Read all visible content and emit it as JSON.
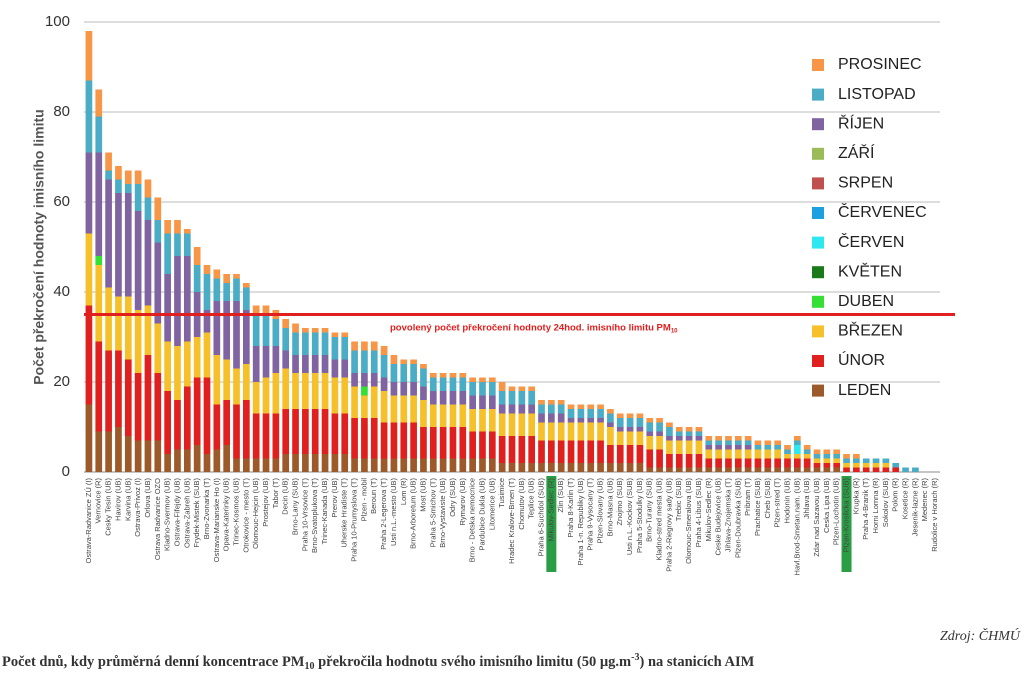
{
  "chart_data": {
    "type": "bar",
    "stacked": true,
    "y_label": "Počet překročení hodnoty imisního limitu",
    "caption": [
      "Počet dnů, kdy průměrná denní koncentrace PM",
      "10",
      " překročila hodnotu svého imisního limitu (50 µg.m",
      "-3",
      ") na stanicích AIM"
    ],
    "source": "Zdroj: ČHMÚ",
    "ylim": [
      0,
      100
    ],
    "yticks": [
      0,
      20,
      40,
      60,
      80,
      100
    ],
    "grid": true,
    "reference_line": {
      "value": 35,
      "color": "#e0201e",
      "label": [
        "povolený počet překročení hodnoty 24hod. imisního limitu PM",
        "10"
      ]
    },
    "highlighted": [
      47,
      77
    ],
    "highlight_color": "#2a9d45",
    "categories": [
      "Ostrava-Radvanice ZÚ (I)",
      "Vernovice (R)",
      "Cesky Tesin (UB)",
      "Havirov (UB)",
      "Karvina (UB)",
      "Ostrava-Privoz (I)",
      "Orlova (UB)",
      "Ostrava Radvanice OZO",
      "Kladno-Svermov (UB)",
      "Ostrava-Fifejdy (UB)",
      "Ostrava-Zabreh (UB)",
      "Frydek-Mistek (SUB)",
      "Brno-Zvonarka (T)",
      "Ostrava-Marianske Ho (I)",
      "Opava-Katerinky (UB)",
      "Trinec-Kosmos (UB)",
      "Otrokovice - mesto (T)",
      "Olomouc-Hejcin (UB)",
      "Prostejov (UB)",
      "Tabor (T)",
      "Decin (UB)",
      "Brno-Lany (SUB)",
      "Praha 10-Vrsovice (T)",
      "Brno-Svatoplukova (T)",
      "Trinec-Kanada (UB)",
      "Prerov (UB)",
      "Uherske Hradiste (T)",
      "Praha 10-Prumyslova (T)",
      "Plzen - mobil",
      "Beroun (T)",
      "Praha 2-Legerova (T)",
      "Usti n.L.-mesto (UB)",
      "Lom (R)",
      "Brno-Arboretum (UB)",
      "Most (UB)",
      "Praha 5-Smichov (T)",
      "Brno-Vystaviste (UB)",
      "Odry (SUB)",
      "Rymarov (UB)",
      "Brno - Detska nemocnice",
      "Pardubice Dukla (UB)",
      "Litomerice (UB)",
      "Tusimice",
      "Hradec Kralove-Brnen (T)",
      "Chomutov (UB)",
      "Teplice (UB)",
      "Praha 6-Suchdol (SUB)",
      "Mikulov-Sedlec (R)",
      "Zlin (SUB)",
      "Praha 8-Karlin (T)",
      "Praha 1-n. Republiky (UB)",
      "Praha 9-Vysocany (T)",
      "Plzen-Slovany (UB)",
      "Brno-Masna (UB)",
      "Znojmo (SUB)",
      "Usti n.L.-Kockov (SUB)",
      "Praha 5-Stodulky (UB)",
      "Brno-Turany (SUB)",
      "Kladno-stred mesta (UB)",
      "Praha 2-Riegrovy sady (UB)",
      "Trebic (SUB)",
      "Olomouc-Smeralova (UB)",
      "Praha 4-Libus (SUB)",
      "Mikulov-Sedlec (R)",
      "Ceske Budejovice (UB)",
      "Jihlava-Znojemska (T)",
      "Plzen-Doubravka (SUB)",
      "Pribram (T)",
      "Prachatice (SUB)",
      "Cheb (SUB)",
      "Plzen-stred (T)",
      "Hodonin (UB)",
      "Havl.Brod-Smetan.nam. (UB)",
      "Jihlava (UB)",
      "Zdar nad Sazavou (UB)",
      "Ceska Lipa (UB)",
      "Plzen-Lochotin (UB)",
      "Plzen-Kroslicka (SUB)",
      "Krupka (R)",
      "Praha 4-Branik (T)",
      "Horni Lomna (R)",
      "Sokolov (SUB)",
      "Polom (R)",
      "Kosetice (R)",
      "Jesenik-lazne (R)",
      "Medenec (R)",
      "Rudolice v Horach (R)"
    ],
    "series": [
      {
        "name": "LEDEN",
        "color": "#9c5a2a",
        "values": [
          15,
          9,
          9,
          10,
          8,
          7,
          7,
          7,
          4,
          5,
          5,
          6,
          4,
          5,
          6,
          3,
          3,
          3,
          3,
          3,
          4,
          4,
          4,
          4,
          4,
          4,
          4,
          3,
          3,
          3,
          3,
          3,
          3,
          3,
          3,
          3,
          3,
          3,
          3,
          3,
          3,
          3,
          2,
          2,
          2,
          2,
          2,
          2,
          2,
          2,
          2,
          2,
          2,
          2,
          2,
          2,
          2,
          1,
          1,
          1,
          1,
          1,
          1,
          1,
          1,
          1,
          1,
          1,
          1,
          1,
          1,
          1,
          1,
          1,
          1,
          1,
          1,
          0,
          0,
          0,
          0,
          0,
          0,
          0,
          0,
          0,
          0
        ]
      },
      {
        "name": "ÚNOR",
        "color": "#e0201e",
        "values": [
          22,
          20,
          18,
          17,
          17,
          15,
          19,
          15,
          14,
          11,
          14,
          15,
          17,
          10,
          10,
          12,
          13,
          10,
          10,
          10,
          10,
          10,
          10,
          10,
          10,
          9,
          9,
          9,
          9,
          9,
          8,
          8,
          8,
          8,
          7,
          7,
          7,
          7,
          7,
          6,
          6,
          6,
          6,
          6,
          6,
          6,
          5,
          5,
          5,
          5,
          5,
          5,
          5,
          4,
          4,
          4,
          4,
          4,
          4,
          3,
          3,
          3,
          3,
          2,
          2,
          2,
          2,
          2,
          2,
          2,
          2,
          2,
          2,
          2,
          1,
          1,
          1,
          1,
          1,
          1,
          1,
          1,
          1,
          0,
          0,
          0,
          0
        ]
      },
      {
        "name": "BŘEZEN",
        "color": "#f5c02a",
        "values": [
          16,
          17,
          14,
          12,
          14,
          14,
          11,
          11,
          11,
          12,
          10,
          9,
          10,
          11,
          9,
          8,
          8,
          7,
          8,
          9,
          9,
          8,
          8,
          8,
          8,
          8,
          8,
          7,
          5,
          7,
          7,
          6,
          6,
          6,
          6,
          5,
          5,
          5,
          5,
          5,
          5,
          5,
          5,
          5,
          5,
          5,
          4,
          4,
          4,
          4,
          4,
          4,
          4,
          4,
          3,
          3,
          3,
          3,
          3,
          3,
          3,
          3,
          3,
          2,
          2,
          2,
          2,
          2,
          2,
          2,
          2,
          1,
          1,
          1,
          1,
          1,
          1,
          1,
          1,
          1,
          1,
          1,
          0,
          0,
          0,
          0,
          0
        ]
      },
      {
        "name": "DUBEN",
        "color": "#33e033",
        "values": [
          0,
          2,
          0,
          0,
          0,
          0,
          0,
          0,
          0,
          0,
          0,
          0,
          0,
          0,
          0,
          0,
          0,
          0,
          0,
          0,
          0,
          0,
          0,
          0,
          0,
          0,
          0,
          0,
          2,
          0,
          0,
          0,
          0,
          0,
          0,
          0,
          0,
          0,
          0,
          0,
          0,
          0,
          0,
          0,
          0,
          0,
          0,
          0,
          0,
          0,
          0,
          0,
          0,
          0,
          0,
          0,
          0,
          0,
          0,
          0,
          0,
          0,
          0,
          0,
          0,
          0,
          0,
          0,
          0,
          0,
          0,
          0,
          0,
          0,
          0,
          0,
          0,
          0,
          0,
          0,
          0,
          0,
          0,
          0,
          0,
          0,
          0
        ]
      },
      {
        "name": "KVĚTEN",
        "color": "#1a7a1a",
        "values": [
          0,
          0,
          0,
          0,
          0,
          0,
          0,
          0,
          0,
          0,
          0,
          0,
          0,
          0,
          0,
          0,
          0,
          0,
          0,
          0,
          0,
          0,
          0,
          0,
          0,
          0,
          0,
          0,
          0,
          0,
          0,
          0,
          0,
          0,
          0,
          0,
          0,
          0,
          0,
          0,
          0,
          0,
          0,
          0,
          0,
          0,
          0,
          0,
          0,
          0,
          0,
          0,
          0,
          0,
          0,
          0,
          0,
          0,
          0,
          0,
          0,
          0,
          0,
          0,
          0,
          0,
          0,
          0,
          0,
          0,
          0,
          0,
          0,
          0,
          0,
          0,
          0,
          0,
          0,
          0,
          0,
          0,
          0,
          0,
          0,
          0,
          0
        ]
      },
      {
        "name": "ČERVEN",
        "color": "#2ee8f0",
        "values": [
          0,
          0,
          0,
          0,
          0,
          0,
          0,
          0,
          0,
          0,
          0,
          0,
          0,
          0,
          0,
          0,
          0,
          0,
          0,
          0,
          0,
          0,
          0,
          0,
          0,
          0,
          0,
          0,
          0,
          0,
          0,
          0,
          0,
          0,
          0,
          0,
          0,
          0,
          0,
          0,
          0,
          0,
          0,
          0,
          0,
          0,
          0,
          0,
          0,
          0,
          0,
          0,
          0,
          0,
          0,
          0,
          0,
          0,
          0,
          0,
          0,
          0,
          0,
          0,
          0,
          0,
          0,
          0,
          0,
          0,
          0,
          0,
          2,
          0,
          0,
          0,
          0,
          0,
          0,
          0,
          0,
          0,
          0,
          0,
          0,
          0,
          0
        ]
      },
      {
        "name": "ČERVENEC",
        "color": "#1ca0e0",
        "values": [
          0,
          0,
          0,
          0,
          0,
          0,
          0,
          0,
          0,
          0,
          0,
          0,
          0,
          0,
          0,
          0,
          0,
          0,
          0,
          0,
          0,
          0,
          0,
          0,
          0,
          0,
          0,
          0,
          0,
          0,
          0,
          0,
          0,
          0,
          0,
          0,
          0,
          0,
          0,
          0,
          0,
          0,
          0,
          0,
          0,
          0,
          0,
          0,
          0,
          0,
          0,
          0,
          0,
          0,
          0,
          0,
          0,
          0,
          0,
          0,
          0,
          0,
          0,
          0,
          0,
          0,
          0,
          0,
          0,
          0,
          0,
          0,
          0,
          0,
          0,
          0,
          0,
          0,
          0,
          0,
          0,
          0,
          0,
          0,
          0,
          0,
          0
        ]
      },
      {
        "name": "SRPEN",
        "color": "#c0504d",
        "values": [
          0,
          0,
          0,
          0,
          0,
          0,
          0,
          0,
          0,
          0,
          0,
          0,
          0,
          0,
          0,
          0,
          0,
          0,
          0,
          0,
          0,
          0,
          0,
          0,
          0,
          0,
          0,
          0,
          0,
          0,
          0,
          0,
          0,
          0,
          0,
          0,
          0,
          0,
          0,
          0,
          0,
          0,
          0,
          0,
          0,
          0,
          0,
          0,
          0,
          0,
          0,
          0,
          0,
          0,
          0,
          0,
          0,
          0,
          0,
          0,
          0,
          0,
          0,
          0,
          0,
          0,
          0,
          0,
          0,
          0,
          0,
          0,
          0,
          0,
          0,
          0,
          0,
          0,
          0,
          0,
          0,
          0,
          0,
          0,
          0,
          0,
          0
        ]
      },
      {
        "name": "ZÁŘÍ",
        "color": "#9bbb59",
        "values": [
          0,
          0,
          0,
          0,
          0,
          0,
          0,
          0,
          0,
          0,
          0,
          0,
          0,
          0,
          0,
          0,
          0,
          0,
          0,
          0,
          0,
          0,
          0,
          0,
          0,
          0,
          0,
          0,
          0,
          0,
          0,
          0,
          0,
          0,
          0,
          0,
          0,
          0,
          0,
          0,
          0,
          0,
          0,
          0,
          0,
          0,
          0,
          0,
          0,
          0,
          0,
          0,
          0,
          0,
          0,
          0,
          0,
          0,
          0,
          0,
          0,
          0,
          0,
          0,
          0,
          0,
          0,
          0,
          0,
          0,
          0,
          0,
          0,
          0,
          0,
          0,
          0,
          0,
          0,
          0,
          0,
          0,
          0,
          0,
          0,
          0,
          0
        ]
      },
      {
        "name": "ŘÍJEN",
        "color": "#8064a2",
        "values": [
          18,
          23,
          24,
          23,
          23,
          22,
          19,
          18,
          15,
          20,
          19,
          10,
          5,
          12,
          13,
          15,
          12,
          8,
          7,
          6,
          4,
          4,
          4,
          4,
          4,
          4,
          4,
          3,
          3,
          3,
          3,
          3,
          3,
          3,
          3,
          3,
          3,
          3,
          3,
          3,
          3,
          3,
          2,
          2,
          2,
          2,
          2,
          2,
          2,
          1,
          1,
          1,
          1,
          1,
          1,
          1,
          1,
          1,
          1,
          1,
          1,
          1,
          1,
          1,
          1,
          1,
          1,
          1,
          0,
          0,
          0,
          0,
          0,
          0,
          0,
          0,
          0,
          0,
          0,
          0,
          0,
          0,
          0,
          0,
          0,
          0,
          0
        ]
      },
      {
        "name": "LISTOPAD",
        "color": "#4bacc6",
        "values": [
          16,
          8,
          2,
          3,
          2,
          6,
          5,
          5,
          9,
          5,
          5,
          6,
          8,
          5,
          4,
          5,
          5,
          7,
          7,
          6,
          5,
          5,
          5,
          5,
          5,
          5,
          5,
          5,
          5,
          5,
          5,
          4,
          4,
          4,
          4,
          3,
          3,
          3,
          3,
          3,
          3,
          3,
          3,
          3,
          3,
          3,
          2,
          2,
          2,
          2,
          2,
          2,
          2,
          2,
          2,
          2,
          2,
          2,
          2,
          2,
          1,
          1,
          1,
          1,
          1,
          1,
          1,
          1,
          1,
          1,
          1,
          1,
          1,
          1,
          1,
          1,
          1,
          1,
          1,
          1,
          1,
          1,
          1,
          1,
          1,
          0,
          0
        ]
      },
      {
        "name": "PROSINEC",
        "color": "#f79646",
        "values": [
          11,
          6,
          4,
          3,
          3,
          3,
          4,
          5,
          3,
          3,
          1,
          4,
          2,
          2,
          2,
          1,
          1,
          2,
          2,
          2,
          2,
          2,
          1,
          1,
          1,
          1,
          1,
          2,
          2,
          2,
          2,
          2,
          1,
          1,
          1,
          1,
          1,
          1,
          1,
          1,
          1,
          1,
          2,
          1,
          1,
          1,
          1,
          1,
          1,
          1,
          1,
          1,
          1,
          1,
          1,
          1,
          1,
          1,
          1,
          1,
          1,
          1,
          1,
          1,
          1,
          1,
          1,
          1,
          1,
          1,
          1,
          1,
          1,
          1,
          1,
          1,
          1,
          1,
          1,
          0,
          0,
          0,
          0,
          0,
          0,
          0,
          0
        ]
      }
    ]
  }
}
